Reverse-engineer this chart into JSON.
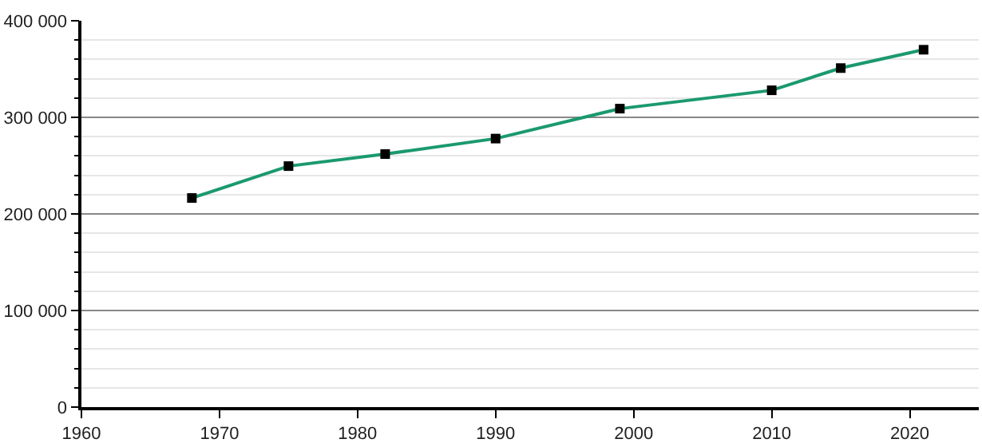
{
  "chart_data": {
    "type": "line",
    "x": [
      1968,
      1975,
      1982,
      1990,
      1999,
      2010,
      2015,
      2021
    ],
    "series": [
      {
        "color": "#1b9970",
        "values": [
          216500,
          249500,
          262000,
          278000,
          309000,
          328000,
          351000,
          370000
        ]
      }
    ],
    "xlim": [
      1960,
      2025
    ],
    "xticks": [
      1960,
      1970,
      1980,
      1990,
      2000,
      2010,
      2020
    ],
    "ylim": [
      0,
      400000
    ],
    "yticks": [
      {
        "value": 0,
        "label": "0"
      },
      {
        "value": 100000,
        "label": "100 000"
      },
      {
        "value": 200000,
        "label": "200 000"
      },
      {
        "value": 300000,
        "label": "300 000"
      },
      {
        "value": 400000,
        "label": "400 000"
      }
    ],
    "grid": "y",
    "marker": "square",
    "line_style": "solid",
    "legend": false
  }
}
